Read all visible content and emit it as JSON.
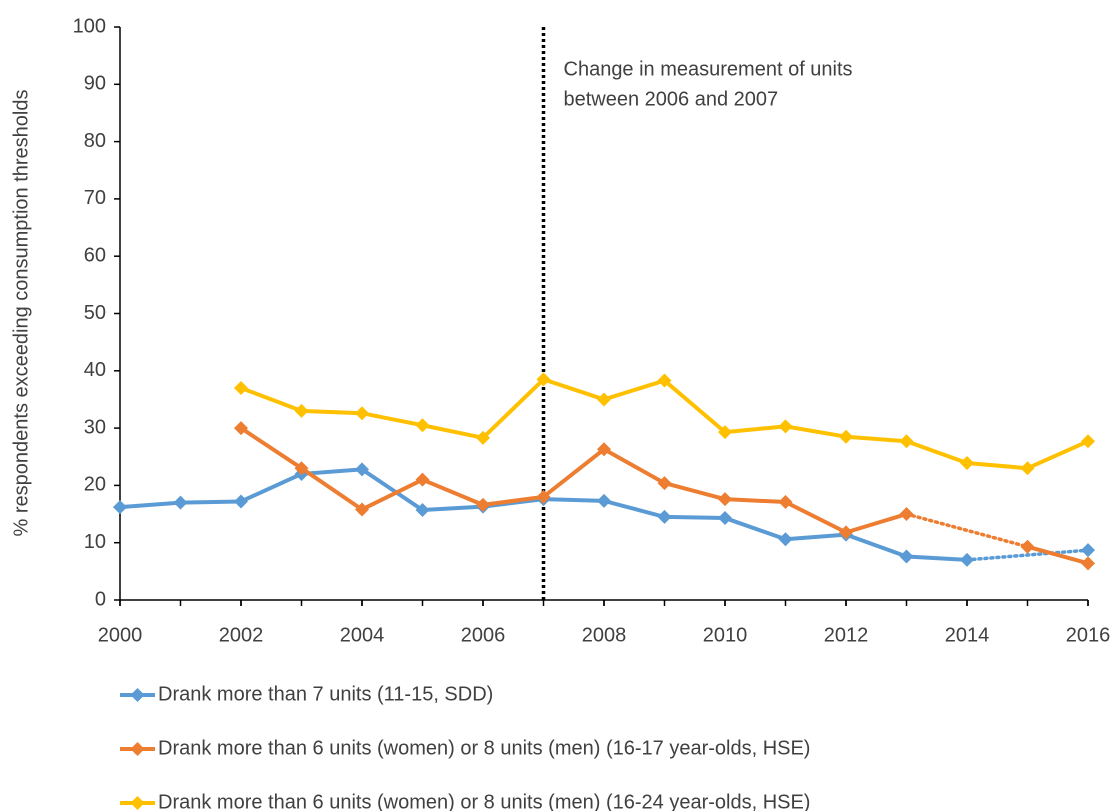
{
  "chart_data": {
    "type": "line",
    "y_label": "% respondents exceeding consumption thresholds",
    "x": [
      2000,
      2001,
      2002,
      2003,
      2004,
      2005,
      2006,
      2007,
      2008,
      2009,
      2010,
      2011,
      2012,
      2013,
      2014,
      2015,
      2016
    ],
    "series": [
      {
        "name": "Drank more than 7 units (11-15, SDD)",
        "color": "#5b9bd5",
        "values": [
          16.2,
          17,
          17.2,
          22,
          22.8,
          15.7,
          16.3,
          17.6,
          17.3,
          14.5,
          14.3,
          10.6,
          11.4,
          7.6,
          7,
          null,
          8.7
        ]
      },
      {
        "name": "Drank more than 6 units (women) or 8 units (men) (16-17 year-olds, HSE)",
        "color": "#ed7d31",
        "values": [
          null,
          null,
          30,
          23,
          15.8,
          21,
          16.6,
          18,
          26.3,
          20.4,
          17.6,
          17.1,
          11.8,
          15,
          null,
          9.3,
          6.4
        ]
      },
      {
        "name": "Drank more than 6 units (women) or 8 units (men) (16-24 year-olds, HSE)",
        "color": "#ffc000",
        "values": [
          null,
          null,
          37,
          33,
          32.6,
          30.5,
          28.3,
          38.5,
          35,
          38.3,
          29.3,
          30.3,
          28.5,
          27.7,
          23.9,
          23,
          27.7
        ]
      }
    ],
    "gap_style": "dotted",
    "xlim": [
      2000,
      2016
    ],
    "xticks": [
      2000,
      2002,
      2004,
      2006,
      2008,
      2010,
      2012,
      2014,
      2016
    ],
    "ylim": [
      0,
      100
    ],
    "yticks": [
      0,
      10,
      20,
      30,
      40,
      50,
      60,
      70,
      80,
      90,
      100
    ],
    "grid": false,
    "legend": "bottom",
    "annotation": {
      "x": 2007,
      "lines": [
        "Change in measurement of units",
        "between 2006 and 2007"
      ]
    }
  }
}
